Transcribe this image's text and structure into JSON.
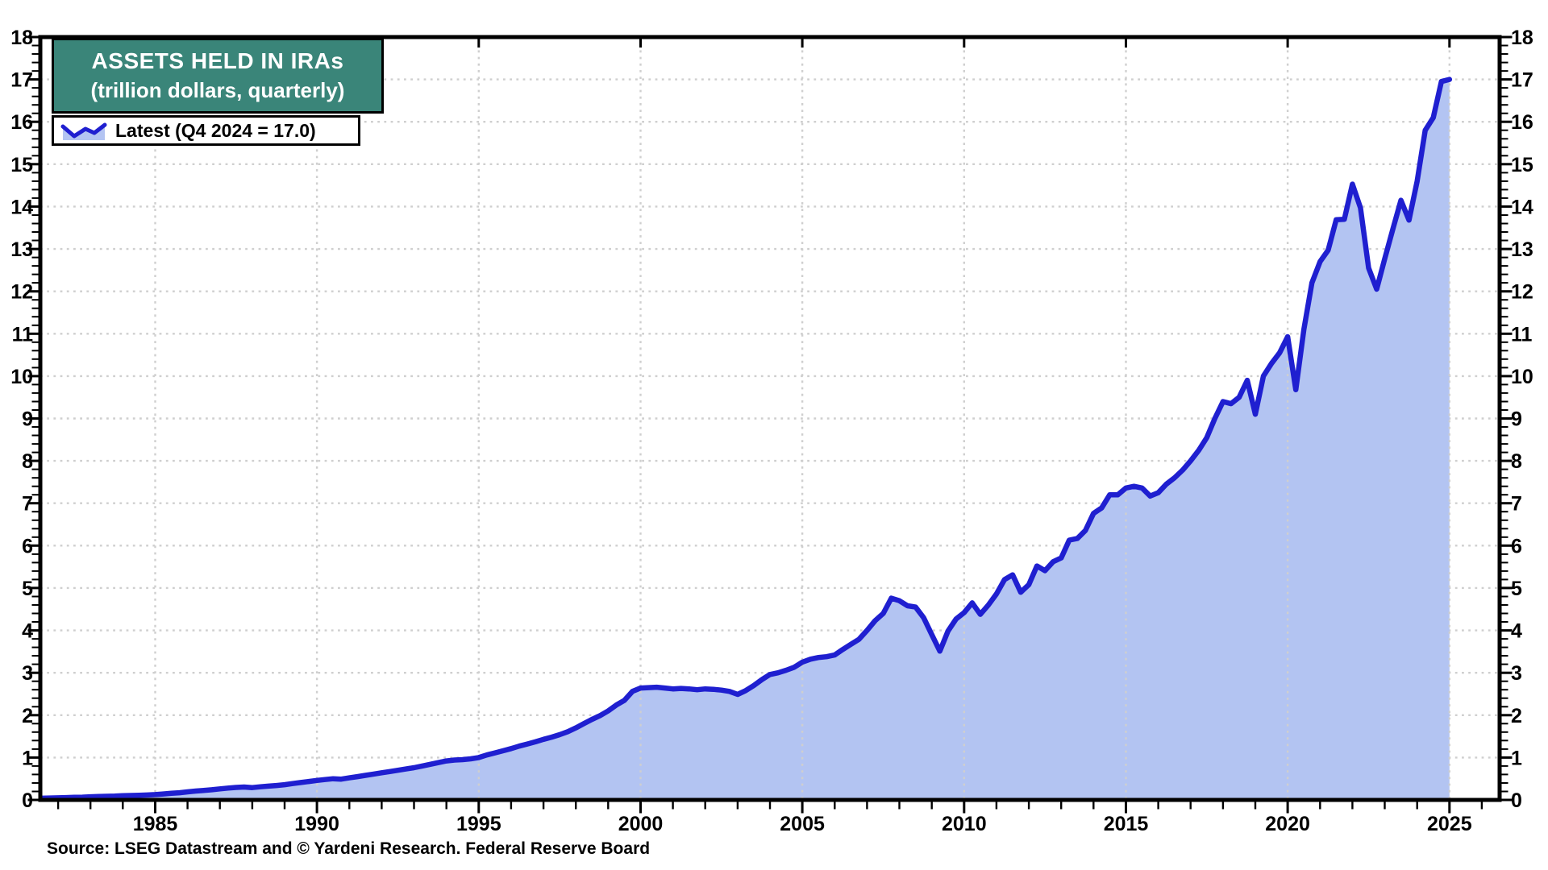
{
  "title": {
    "line1": "ASSETS HELD IN IRAs",
    "line2": "(trillion dollars, quarterly)"
  },
  "legend": {
    "label": "Latest (Q4 2024 = 17.0)"
  },
  "source": "Source: LSEG Datastream and © Yardeni Research. Federal Reserve Board",
  "colors": {
    "line": "#1f1fd0",
    "fill": "#b3c4f2",
    "grid": "#cfcfcf",
    "axis": "#000000",
    "title_bg": "#3a8579",
    "title_text": "#ffffff",
    "background": "#ffffff"
  },
  "chart_data": {
    "type": "area",
    "title": "ASSETS HELD IN IRAs",
    "subtitle": "(trillion dollars, quarterly)",
    "xlabel": "",
    "ylabel": "trillion dollars",
    "legend_position": "top-left",
    "grid": "dotted",
    "xlim": [
      1981.45,
      2026.55
    ],
    "ylim": [
      0,
      18
    ],
    "y_tick_step": 1,
    "y_minor_step": 0.2,
    "x_ticks_major": [
      1985,
      1990,
      1995,
      2000,
      2005,
      2010,
      2015,
      2020,
      2025
    ],
    "x_minor_step": 1,
    "y_axis_labels_both_sides": true,
    "series": [
      {
        "name": "Latest (Q4 2024 = 17.0)",
        "units": "trillion dollars",
        "points": [
          [
            1981.5,
            0.04
          ],
          [
            1981.75,
            0.045
          ],
          [
            1982,
            0.05
          ],
          [
            1982.25,
            0.055
          ],
          [
            1982.5,
            0.06
          ],
          [
            1982.75,
            0.065
          ],
          [
            1983,
            0.075
          ],
          [
            1983.25,
            0.08
          ],
          [
            1983.5,
            0.085
          ],
          [
            1983.75,
            0.09
          ],
          [
            1984,
            0.1
          ],
          [
            1984.25,
            0.105
          ],
          [
            1984.5,
            0.11
          ],
          [
            1984.75,
            0.115
          ],
          [
            1985,
            0.125
          ],
          [
            1985.25,
            0.14
          ],
          [
            1985.5,
            0.155
          ],
          [
            1985.75,
            0.17
          ],
          [
            1986,
            0.19
          ],
          [
            1986.25,
            0.21
          ],
          [
            1986.5,
            0.225
          ],
          [
            1986.75,
            0.24
          ],
          [
            1987,
            0.26
          ],
          [
            1987.25,
            0.28
          ],
          [
            1987.5,
            0.295
          ],
          [
            1987.75,
            0.305
          ],
          [
            1988,
            0.29
          ],
          [
            1988.25,
            0.31
          ],
          [
            1988.5,
            0.325
          ],
          [
            1988.75,
            0.34
          ],
          [
            1989,
            0.36
          ],
          [
            1989.25,
            0.385
          ],
          [
            1989.5,
            0.41
          ],
          [
            1989.75,
            0.435
          ],
          [
            1990,
            0.46
          ],
          [
            1990.25,
            0.48
          ],
          [
            1990.5,
            0.5
          ],
          [
            1990.75,
            0.49
          ],
          [
            1991,
            0.52
          ],
          [
            1991.25,
            0.55
          ],
          [
            1991.5,
            0.58
          ],
          [
            1991.75,
            0.61
          ],
          [
            1992,
            0.64
          ],
          [
            1992.25,
            0.67
          ],
          [
            1992.5,
            0.7
          ],
          [
            1992.75,
            0.73
          ],
          [
            1993,
            0.76
          ],
          [
            1993.25,
            0.8
          ],
          [
            1993.5,
            0.84
          ],
          [
            1993.75,
            0.88
          ],
          [
            1994,
            0.92
          ],
          [
            1994.25,
            0.94
          ],
          [
            1994.5,
            0.95
          ],
          [
            1994.75,
            0.97
          ],
          [
            1995,
            1.0
          ],
          [
            1995.25,
            1.06
          ],
          [
            1995.5,
            1.11
          ],
          [
            1995.75,
            1.16
          ],
          [
            1996,
            1.21
          ],
          [
            1996.25,
            1.27
          ],
          [
            1996.5,
            1.32
          ],
          [
            1996.75,
            1.37
          ],
          [
            1997,
            1.43
          ],
          [
            1997.25,
            1.48
          ],
          [
            1997.5,
            1.54
          ],
          [
            1997.75,
            1.61
          ],
          [
            1998,
            1.7
          ],
          [
            1998.25,
            1.8
          ],
          [
            1998.5,
            1.9
          ],
          [
            1998.75,
            1.99
          ],
          [
            1999,
            2.1
          ],
          [
            1999.25,
            2.24
          ],
          [
            1999.5,
            2.35
          ],
          [
            1999.75,
            2.56
          ],
          [
            2000,
            2.64
          ],
          [
            2000.25,
            2.65
          ],
          [
            2000.5,
            2.66
          ],
          [
            2000.75,
            2.64
          ],
          [
            2001,
            2.62
          ],
          [
            2001.25,
            2.63
          ],
          [
            2001.5,
            2.62
          ],
          [
            2001.75,
            2.6
          ],
          [
            2002,
            2.62
          ],
          [
            2002.25,
            2.61
          ],
          [
            2002.5,
            2.59
          ],
          [
            2002.75,
            2.56
          ],
          [
            2003,
            2.49
          ],
          [
            2003.25,
            2.58
          ],
          [
            2003.5,
            2.7
          ],
          [
            2003.75,
            2.84
          ],
          [
            2004,
            2.96
          ],
          [
            2004.25,
            3.0
          ],
          [
            2004.5,
            3.06
          ],
          [
            2004.75,
            3.13
          ],
          [
            2005,
            3.25
          ],
          [
            2005.25,
            3.32
          ],
          [
            2005.5,
            3.36
          ],
          [
            2005.75,
            3.38
          ],
          [
            2006,
            3.42
          ],
          [
            2006.25,
            3.55
          ],
          [
            2006.5,
            3.67
          ],
          [
            2006.75,
            3.79
          ],
          [
            2007,
            4.0
          ],
          [
            2007.25,
            4.23
          ],
          [
            2007.5,
            4.4
          ],
          [
            2007.75,
            4.76
          ],
          [
            2008,
            4.7
          ],
          [
            2008.25,
            4.58
          ],
          [
            2008.5,
            4.55
          ],
          [
            2008.75,
            4.3
          ],
          [
            2009,
            3.9
          ],
          [
            2009.25,
            3.51
          ],
          [
            2009.5,
            3.98
          ],
          [
            2009.75,
            4.27
          ],
          [
            2010,
            4.42
          ],
          [
            2010.25,
            4.65
          ],
          [
            2010.5,
            4.38
          ],
          [
            2010.75,
            4.6
          ],
          [
            2011,
            4.86
          ],
          [
            2011.25,
            5.2
          ],
          [
            2011.5,
            5.31
          ],
          [
            2011.75,
            4.9
          ],
          [
            2012,
            5.08
          ],
          [
            2012.25,
            5.52
          ],
          [
            2012.5,
            5.41
          ],
          [
            2012.75,
            5.62
          ],
          [
            2013,
            5.71
          ],
          [
            2013.25,
            6.13
          ],
          [
            2013.5,
            6.17
          ],
          [
            2013.75,
            6.36
          ],
          [
            2014,
            6.76
          ],
          [
            2014.25,
            6.89
          ],
          [
            2014.5,
            7.2
          ],
          [
            2014.75,
            7.2
          ],
          [
            2015,
            7.36
          ],
          [
            2015.25,
            7.4
          ],
          [
            2015.5,
            7.36
          ],
          [
            2015.75,
            7.17
          ],
          [
            2016,
            7.25
          ],
          [
            2016.25,
            7.45
          ],
          [
            2016.5,
            7.6
          ],
          [
            2016.75,
            7.78
          ],
          [
            2017,
            8.0
          ],
          [
            2017.25,
            8.25
          ],
          [
            2017.5,
            8.55
          ],
          [
            2017.75,
            9.0
          ],
          [
            2018,
            9.4
          ],
          [
            2018.25,
            9.35
          ],
          [
            2018.5,
            9.5
          ],
          [
            2018.75,
            9.9
          ],
          [
            2019,
            9.1
          ],
          [
            2019.25,
            10.0
          ],
          [
            2019.5,
            10.3
          ],
          [
            2019.75,
            10.55
          ],
          [
            2020,
            10.93
          ],
          [
            2020.25,
            9.68
          ],
          [
            2020.5,
            11.1
          ],
          [
            2020.75,
            12.2
          ],
          [
            2021,
            12.7
          ],
          [
            2021.25,
            12.97
          ],
          [
            2021.5,
            13.69
          ],
          [
            2021.75,
            13.7
          ],
          [
            2022,
            14.53
          ],
          [
            2022.25,
            13.97
          ],
          [
            2022.5,
            12.55
          ],
          [
            2022.75,
            12.05
          ],
          [
            2023,
            12.77
          ],
          [
            2023.25,
            13.47
          ],
          [
            2023.5,
            14.15
          ],
          [
            2023.75,
            13.68
          ],
          [
            2024,
            14.6
          ],
          [
            2024.25,
            15.8
          ],
          [
            2024.5,
            16.1
          ],
          [
            2024.75,
            16.95
          ],
          [
            2025,
            17.0
          ]
        ]
      }
    ]
  }
}
